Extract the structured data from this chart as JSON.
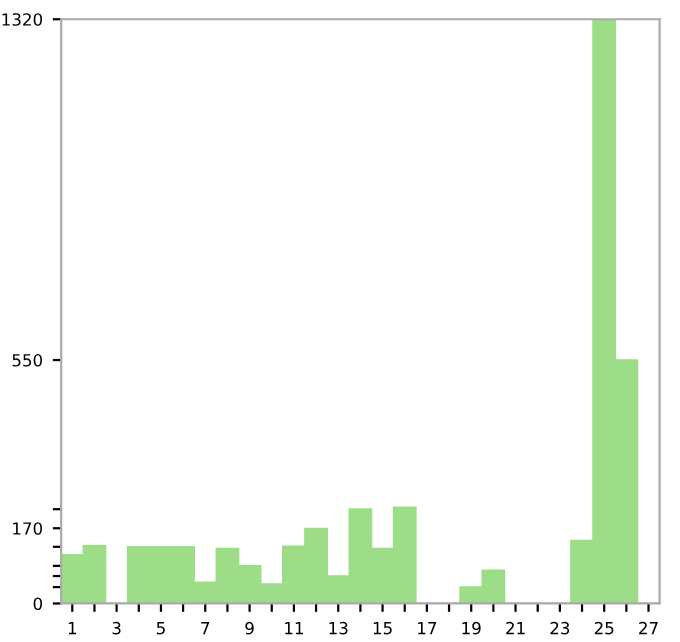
{
  "chart_data": {
    "type": "bar",
    "categories": [
      "1",
      null,
      "3",
      null,
      "5",
      null,
      "7",
      null,
      "9",
      null,
      "11",
      null,
      "13",
      null,
      "15",
      null,
      "17",
      null,
      "19",
      null,
      "21",
      null,
      "23",
      null,
      "25",
      null,
      "27"
    ],
    "values": [
      110,
      130,
      0,
      128,
      128,
      128,
      48,
      124,
      85,
      44,
      129,
      169,
      62,
      213,
      124,
      217,
      0,
      0,
      37,
      75,
      0,
      0,
      0,
      142,
      1320,
      550,
      0
    ],
    "color": "#9ddd88",
    "ylim": [
      0,
      1320
    ],
    "yticks": [
      0,
      {
        "value": 37,
        "label": null
      },
      {
        "value": 62,
        "label": null
      },
      {
        "value": 85,
        "label": null
      },
      {
        "value": 128,
        "label": null
      },
      170,
      {
        "value": 213,
        "label": null
      },
      550,
      1320
    ],
    "grid": false
  }
}
